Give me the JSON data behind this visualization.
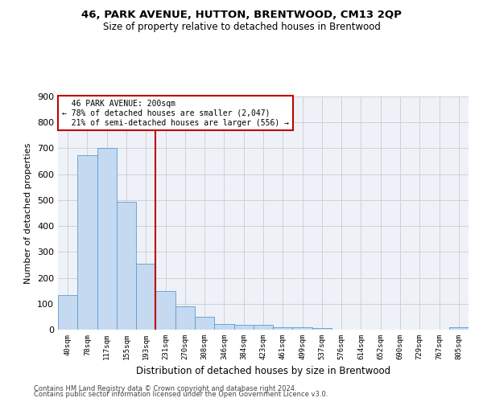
{
  "title1": "46, PARK AVENUE, HUTTON, BRENTWOOD, CM13 2QP",
  "title2": "Size of property relative to detached houses in Brentwood",
  "xlabel": "Distribution of detached houses by size in Brentwood",
  "ylabel": "Number of detached properties",
  "footnote1": "Contains HM Land Registry data © Crown copyright and database right 2024.",
  "footnote2": "Contains public sector information licensed under the Open Government Licence v3.0.",
  "bin_labels": [
    "40sqm",
    "78sqm",
    "117sqm",
    "155sqm",
    "193sqm",
    "231sqm",
    "270sqm",
    "308sqm",
    "346sqm",
    "384sqm",
    "423sqm",
    "461sqm",
    "499sqm",
    "537sqm",
    "576sqm",
    "614sqm",
    "652sqm",
    "690sqm",
    "729sqm",
    "767sqm",
    "805sqm"
  ],
  "bar_values": [
    135,
    675,
    700,
    493,
    255,
    150,
    90,
    50,
    22,
    18,
    18,
    10,
    10,
    5,
    0,
    0,
    0,
    0,
    0,
    0,
    8
  ],
  "bar_color": "#c5d9f0",
  "bar_edge_color": "#5b9bd5",
  "property_label": "46 PARK AVENUE: 200sqm",
  "pct_smaller": "78%",
  "n_smaller": "2,047",
  "pct_larger": "21%",
  "n_larger": "556",
  "vline_color": "#c00000",
  "vline_position": 4.5,
  "annotation_box_color": "#c00000",
  "ylim": [
    0,
    900
  ],
  "yticks": [
    0,
    100,
    200,
    300,
    400,
    500,
    600,
    700,
    800,
    900
  ],
  "grid_color": "#d0d0d0",
  "bg_color": "#eef2f8"
}
